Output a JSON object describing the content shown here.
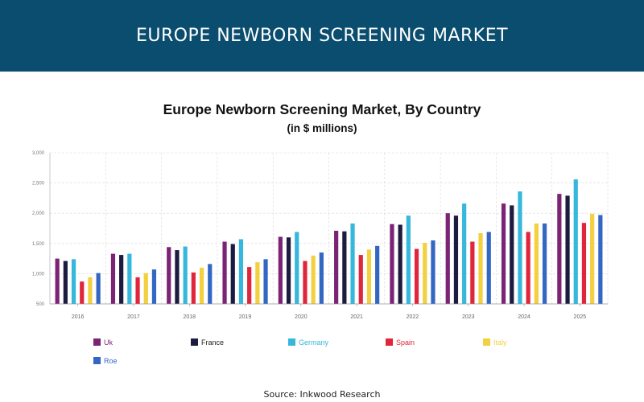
{
  "banner": {
    "title": "EUROPE NEWBORN SCREENING MARKET"
  },
  "source": "Source: Inkwood Research",
  "chart_data": {
    "type": "bar",
    "title": "Europe Newborn Screening Market, By Country",
    "subtitle": "(in $ millions)",
    "xlabel": "",
    "ylabel": "",
    "ylim": [
      500,
      3000
    ],
    "yticks": [
      500,
      1000,
      1500,
      2000,
      2500,
      3000
    ],
    "ytick_labels": [
      "500",
      "1,000",
      "1,500",
      "2,000",
      "2,500",
      "3,000"
    ],
    "grid": true,
    "legend": "bottom",
    "categories": [
      "2016",
      "2017",
      "2018",
      "2019",
      "2020",
      "2021",
      "2022",
      "2023",
      "2024",
      "2025"
    ],
    "series": [
      {
        "name": "Uk",
        "color": "#7b2375",
        "values": [
          1250,
          1330,
          1440,
          1530,
          1610,
          1710,
          1820,
          2000,
          2160,
          2320
        ]
      },
      {
        "name": "France",
        "color": "#1b1c3f",
        "values": [
          1210,
          1310,
          1390,
          1490,
          1600,
          1700,
          1810,
          1960,
          2130,
          2290
        ]
      },
      {
        "name": "Germany",
        "color": "#35b8dc",
        "values": [
          1240,
          1330,
          1450,
          1570,
          1690,
          1830,
          1960,
          2160,
          2360,
          2560
        ]
      },
      {
        "name": "Spain",
        "color": "#e0263b",
        "values": [
          870,
          940,
          1020,
          1110,
          1210,
          1310,
          1410,
          1530,
          1690,
          1840
        ]
      },
      {
        "name": "Italy",
        "color": "#f2d03f",
        "values": [
          940,
          1010,
          1100,
          1190,
          1300,
          1400,
          1510,
          1670,
          1830,
          1990
        ]
      },
      {
        "name": "Roe",
        "color": "#3367c4",
        "values": [
          1010,
          1070,
          1160,
          1240,
          1350,
          1460,
          1550,
          1690,
          1830,
          1970
        ]
      }
    ]
  }
}
